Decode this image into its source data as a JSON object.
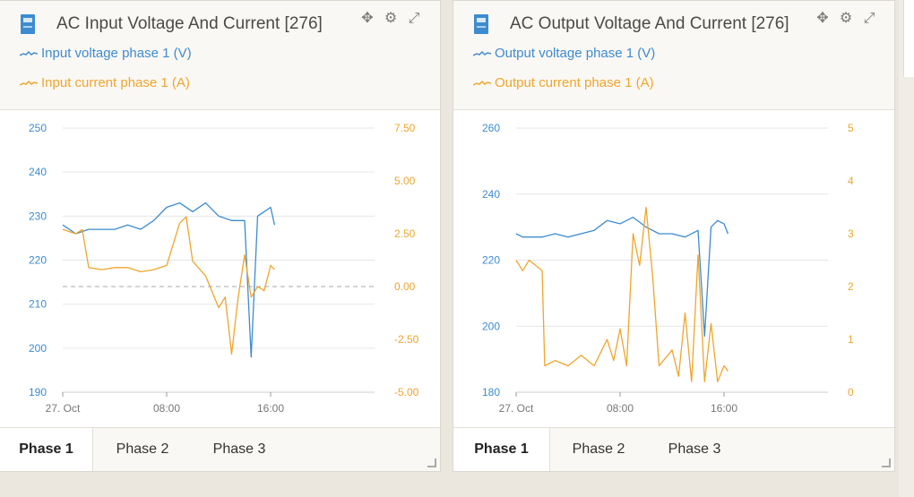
{
  "panels": [
    {
      "title": "AC Input Voltage And Current [276]",
      "legend": [
        "Input voltage phase 1 (V)",
        "Input current phase 1 (A)"
      ],
      "tabs": [
        "Phase 1",
        "Phase 2",
        "Phase 3"
      ],
      "active_tab": 0,
      "chart_data": {
        "type": "line",
        "x_ticks": [
          "27. Oct",
          "08:00",
          "16:00"
        ],
        "y_left_ticks": [
          "250",
          "240",
          "230",
          "220",
          "210",
          "200",
          "190"
        ],
        "y_left_range": [
          190,
          250
        ],
        "y_right_ticks": [
          "7.50",
          "5.00",
          "2.50",
          "0.00",
          "-2.50",
          "-5.00"
        ],
        "y_right_range": [
          -5,
          7.5
        ],
        "series": [
          {
            "name": "Input voltage phase 1 (V)",
            "axis": "left",
            "color": "#3d8bd1",
            "x": [
              0,
              0.5,
              1,
              2,
              3,
              4,
              5,
              6,
              7,
              8,
              9,
              10,
              11,
              12,
              13,
              14,
              14.5,
              15,
              15.5,
              16,
              16.3
            ],
            "values": [
              228,
              227,
              226,
              227,
              227,
              227,
              228,
              227,
              229,
              232,
              233,
              231,
              233,
              230,
              229,
              229,
              198,
              230,
              231,
              232,
              228
            ]
          },
          {
            "name": "Input current phase 1 (A)",
            "axis": "right",
            "color": "#f0a52d",
            "x": [
              0,
              1,
              1.5,
              2,
              3,
              4,
              5,
              6,
              7,
              8,
              9,
              9.5,
              10,
              11,
              12,
              12.5,
              13,
              13.5,
              14,
              14.5,
              15,
              15.5,
              16,
              16.3
            ],
            "values": [
              2.7,
              2.5,
              2.7,
              0.9,
              0.8,
              0.9,
              0.9,
              0.7,
              0.8,
              1.0,
              3.0,
              3.3,
              1.2,
              0.5,
              -1.0,
              -0.5,
              -3.2,
              -0.5,
              1.5,
              -0.5,
              0.0,
              -0.2,
              1.0,
              0.8
            ]
          }
        ]
      }
    },
    {
      "title": "AC Output Voltage And Current [276]",
      "legend": [
        "Output voltage phase 1 (V)",
        "Output current phase 1 (A)"
      ],
      "tabs": [
        "Phase 1",
        "Phase 2",
        "Phase 3"
      ],
      "active_tab": 0,
      "chart_data": {
        "type": "line",
        "x_ticks": [
          "27. Oct",
          "08:00",
          "16:00"
        ],
        "y_left_ticks": [
          "260",
          "240",
          "220",
          "200",
          "180"
        ],
        "y_left_range": [
          180,
          260
        ],
        "y_right_ticks": [
          "5",
          "4",
          "3",
          "2",
          "1",
          "0"
        ],
        "y_right_range": [
          0,
          5
        ],
        "series": [
          {
            "name": "Output voltage phase 1 (V)",
            "axis": "left",
            "color": "#3d8bd1",
            "x": [
              0,
              0.5,
              1,
              2,
              3,
              4,
              5,
              6,
              7,
              8,
              9,
              10,
              11,
              12,
              13,
              14,
              14.5,
              15,
              15.5,
              16,
              16.3
            ],
            "values": [
              228,
              227,
              227,
              227,
              228,
              227,
              228,
              229,
              232,
              231,
              233,
              230,
              228,
              228,
              227,
              229,
              197,
              230,
              232,
              231,
              228
            ]
          },
          {
            "name": "Output current phase 1 (A)",
            "axis": "right",
            "color": "#f0a52d",
            "x": [
              0,
              0.5,
              1,
              2,
              2.2,
              3,
              4,
              5,
              6,
              7,
              7.5,
              8,
              8.5,
              9,
              9.5,
              10,
              10.5,
              11,
              12,
              12.5,
              13,
              13.5,
              14,
              14.5,
              15,
              15.5,
              16,
              16.3
            ],
            "values": [
              2.5,
              2.3,
              2.5,
              2.3,
              0.5,
              0.6,
              0.5,
              0.7,
              0.5,
              1.0,
              0.6,
              1.2,
              0.5,
              3.0,
              2.4,
              3.5,
              2.2,
              0.5,
              0.8,
              0.3,
              1.5,
              0.2,
              2.6,
              0.2,
              1.3,
              0.2,
              0.5,
              0.4
            ]
          }
        ]
      }
    }
  ]
}
